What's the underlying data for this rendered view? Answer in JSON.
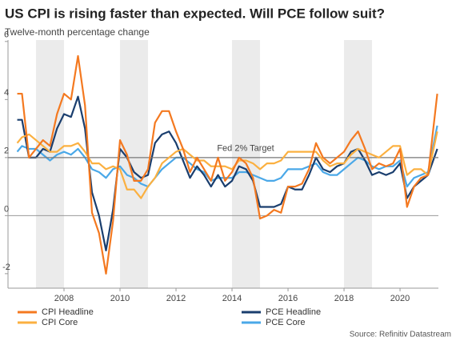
{
  "chart_data": {
    "type": "line",
    "title": "US CPI is rising faster than expected. Will PCE follow suit?",
    "subtitle": "Twelve-month percentage change",
    "source": "Source: Refinitiv Datastream",
    "target": {
      "label": "Fed 2% Target",
      "value": 2
    },
    "xlim": [
      2006,
      2021.37
    ],
    "ylim": [
      -2.5,
      6.05
    ],
    "xticks": [
      2008,
      2010,
      2012,
      2014,
      2016,
      2018,
      2020
    ],
    "yticks": [
      -2,
      0,
      2,
      4,
      6
    ],
    "x": [
      2006.33,
      2006.5,
      2006.75,
      2007,
      2007.25,
      2007.5,
      2007.75,
      2008,
      2008.25,
      2008.5,
      2008.75,
      2009,
      2009.25,
      2009.5,
      2009.75,
      2010,
      2010.25,
      2010.5,
      2010.75,
      2011,
      2011.25,
      2011.5,
      2011.75,
      2012,
      2012.25,
      2012.5,
      2012.75,
      2013,
      2013.25,
      2013.5,
      2013.75,
      2014,
      2014.25,
      2014.5,
      2014.75,
      2015,
      2015.25,
      2015.5,
      2015.75,
      2016,
      2016.25,
      2016.5,
      2016.75,
      2017,
      2017.25,
      2017.5,
      2017.75,
      2018,
      2018.25,
      2018.5,
      2018.75,
      2019,
      2019.25,
      2019.5,
      2019.75,
      2020,
      2020.25,
      2020.5,
      2020.75,
      2021,
      2021.33
    ],
    "series": [
      {
        "name": "CPI Headline",
        "color": "#f47920",
        "values": [
          4.2,
          4.2,
          2.0,
          2.3,
          2.6,
          2.4,
          3.5,
          4.2,
          4.0,
          5.5,
          3.8,
          0.1,
          -0.6,
          -2.0,
          -0.2,
          2.6,
          2.1,
          1.2,
          1.2,
          1.6,
          3.2,
          3.6,
          3.6,
          2.9,
          2.3,
          1.5,
          2.0,
          1.6,
          1.2,
          2.0,
          1.2,
          1.5,
          2.0,
          1.8,
          1.3,
          -0.1,
          0.0,
          0.2,
          0.1,
          1.0,
          1.0,
          1.1,
          1.6,
          2.5,
          2.0,
          1.8,
          2.0,
          2.2,
          2.6,
          2.9,
          2.3,
          1.6,
          1.8,
          1.7,
          1.8,
          2.3,
          0.3,
          1.0,
          1.3,
          1.4,
          4.2
        ]
      },
      {
        "name": "CPI Core",
        "color": "#fbb040",
        "values": [
          2.5,
          2.7,
          2.8,
          2.6,
          2.4,
          2.2,
          2.2,
          2.4,
          2.4,
          2.5,
          2.2,
          1.8,
          1.8,
          1.6,
          1.7,
          1.6,
          0.9,
          0.9,
          0.6,
          1.0,
          1.3,
          1.8,
          2.0,
          2.2,
          2.3,
          2.1,
          1.9,
          1.9,
          1.7,
          1.7,
          1.7,
          1.6,
          1.9,
          1.9,
          1.8,
          1.6,
          1.8,
          1.8,
          1.9,
          2.2,
          2.2,
          2.2,
          2.2,
          2.2,
          1.9,
          1.7,
          1.8,
          1.8,
          2.1,
          2.3,
          2.2,
          2.1,
          2.0,
          2.2,
          2.4,
          2.4,
          1.4,
          1.6,
          1.6,
          1.4,
          2.9
        ]
      },
      {
        "name": "PCE Headline",
        "color": "#1a3e6e",
        "values": [
          3.3,
          3.3,
          2.0,
          2.0,
          2.3,
          2.2,
          3.0,
          3.5,
          3.4,
          4.1,
          3.0,
          0.8,
          0.0,
          -1.2,
          0.2,
          2.3,
          2.0,
          1.5,
          1.3,
          1.4,
          2.5,
          2.8,
          2.9,
          2.5,
          1.9,
          1.3,
          1.7,
          1.4,
          1.0,
          1.4,
          1.0,
          1.2,
          1.7,
          1.6,
          1.2,
          0.3,
          0.3,
          0.3,
          0.4,
          1.0,
          0.9,
          0.9,
          1.4,
          2.0,
          1.6,
          1.5,
          1.7,
          1.8,
          2.2,
          2.3,
          1.9,
          1.4,
          1.5,
          1.4,
          1.5,
          1.8,
          0.6,
          1.0,
          1.2,
          1.4,
          2.3
        ]
      },
      {
        "name": "PCE Core",
        "color": "#4aa8e8",
        "values": [
          2.2,
          2.4,
          2.3,
          2.3,
          2.1,
          1.9,
          2.1,
          2.2,
          2.1,
          2.3,
          2.0,
          1.6,
          1.5,
          1.3,
          1.6,
          1.7,
          1.4,
          1.3,
          1.1,
          1.0,
          1.3,
          1.6,
          1.8,
          2.0,
          2.0,
          1.8,
          1.6,
          1.5,
          1.2,
          1.3,
          1.3,
          1.3,
          1.5,
          1.5,
          1.4,
          1.3,
          1.2,
          1.2,
          1.3,
          1.6,
          1.6,
          1.6,
          1.7,
          1.8,
          1.5,
          1.4,
          1.4,
          1.6,
          1.8,
          2.0,
          1.9,
          1.7,
          1.6,
          1.7,
          1.7,
          1.9,
          1.0,
          1.3,
          1.4,
          1.5,
          3.1
        ]
      }
    ]
  }
}
